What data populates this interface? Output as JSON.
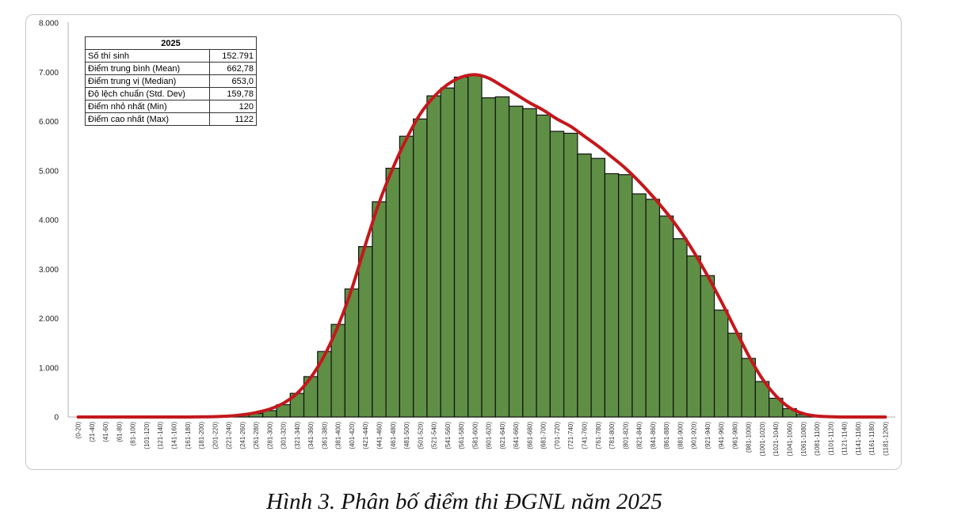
{
  "caption": "Hình 3. Phân bố điểm thi ĐGNL năm 2025",
  "colors": {
    "bar_fill": "#5e8f45",
    "bar_stroke": "#111111",
    "curve": "#c4181c"
  },
  "stats_table": {
    "title": "2025",
    "rows": [
      {
        "label": "Số thí sinh",
        "value": "152.791"
      },
      {
        "label": "Điểm trung bình (Mean)",
        "value": "662,78"
      },
      {
        "label": "Điểm trung vị (Median)",
        "value": "653,0"
      },
      {
        "label": "Độ lệch chuẩn (Std. Dev)",
        "value": "159,78"
      },
      {
        "label": "Điểm nhỏ nhất (Min)",
        "value": "120"
      },
      {
        "label": "Điểm cao nhất (Max)",
        "value": "1122"
      }
    ]
  },
  "chart_data": {
    "type": "bar",
    "title": "",
    "xlabel": "",
    "ylabel": "",
    "ylim": [
      0,
      8000
    ],
    "yticks": [
      0,
      1000,
      2000,
      3000,
      4000,
      5000,
      6000,
      7000,
      8000
    ],
    "ytick_labels": [
      "0",
      "1.000",
      "2.000",
      "3.000",
      "4.000",
      "5.000",
      "6.000",
      "7.000",
      "8.000"
    ],
    "grid": false,
    "categories": [
      "(0-20)",
      "(21-40)",
      "(41-60)",
      "(61-80)",
      "(81-100)",
      "(101-120)",
      "(121-140)",
      "(141-160)",
      "(161-180)",
      "(181-200)",
      "(201-220)",
      "(221-240)",
      "(241-260)",
      "(261-280)",
      "(281-300)",
      "(301-320)",
      "(321-340)",
      "(341-360)",
      "(361-380)",
      "(381-400)",
      "(401-420)",
      "(421-440)",
      "(441-460)",
      "(461-480)",
      "(481-500)",
      "(501-520)",
      "(521-540)",
      "(541-560)",
      "(561-580)",
      "(581-600)",
      "(601-620)",
      "(621-640)",
      "(641-660)",
      "(661-680)",
      "(681-700)",
      "(701-720)",
      "(721-740)",
      "(741-760)",
      "(761-780)",
      "(781-800)",
      "(801-820)",
      "(821-840)",
      "(841-860)",
      "(861-880)",
      "(881-900)",
      "(901-920)",
      "(921-940)",
      "(941-960)",
      "(961-980)",
      "(981-1000)",
      "(1001-1020)",
      "(1021-1040)",
      "(1041-1060)",
      "(1061-1080)",
      "(1081-1100)",
      "(1101-1120)",
      "(1121-1140)",
      "(1141-1160)",
      "(1161-1180)",
      "(1181-1200)"
    ],
    "series": [
      {
        "values": [
          0,
          0,
          0,
          0,
          0,
          0,
          0,
          0,
          0,
          5,
          10,
          20,
          40,
          70,
          130,
          250,
          480,
          820,
          1330,
          1880,
          2600,
          3460,
          4370,
          5050,
          5700,
          6050,
          6520,
          6680,
          6900,
          6930,
          6480,
          6500,
          6310,
          6260,
          6130,
          5800,
          5760,
          5340,
          5250,
          4940,
          4920,
          4530,
          4420,
          4080,
          3620,
          3270,
          2870,
          2170,
          1700,
          1190,
          720,
          380,
          170,
          50,
          15,
          5,
          0,
          0,
          0,
          0
        ]
      },
      {
        "values": [
          0,
          0,
          0,
          0,
          0,
          0,
          0,
          0,
          0,
          3,
          8,
          20,
          45,
          90,
          160,
          280,
          480,
          800,
          1250,
          1850,
          2600,
          3500,
          4350,
          5050,
          5650,
          6150,
          6500,
          6750,
          6900,
          6950,
          6880,
          6720,
          6550,
          6380,
          6230,
          6050,
          5900,
          5700,
          5500,
          5280,
          5050,
          4780,
          4480,
          4150,
          3780,
          3350,
          2870,
          2350,
          1800,
          1250,
          780,
          430,
          190,
          70,
          20,
          6,
          0,
          0,
          0,
          0
        ]
      }
    ]
  }
}
